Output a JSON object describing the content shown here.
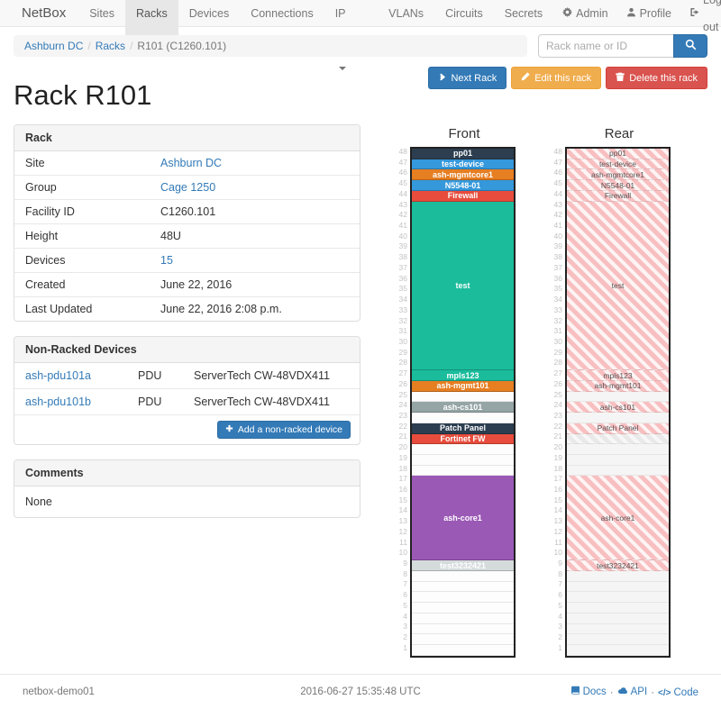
{
  "navbar": {
    "brand": "NetBox",
    "items": [
      {
        "label": "Sites"
      },
      {
        "label": "Racks"
      },
      {
        "label": "Devices"
      },
      {
        "label": "Connections"
      },
      {
        "label": "IP Space"
      },
      {
        "label": "VLANs"
      },
      {
        "label": "Circuits"
      },
      {
        "label": "Secrets"
      }
    ],
    "active_item": "Racks",
    "right_items": [
      {
        "label": "Admin",
        "icon": "gear-icon"
      },
      {
        "label": "Profile",
        "icon": "user-icon"
      },
      {
        "label": "Log out",
        "icon": "logout-icon"
      }
    ]
  },
  "breadcrumb": {
    "items": [
      {
        "label": "Ashburn DC",
        "link": true
      },
      {
        "label": "Racks",
        "link": true
      },
      {
        "label": "R101 (C1260.101)",
        "link": false
      }
    ]
  },
  "search": {
    "placeholder": "Rack name or ID"
  },
  "page": {
    "title": "Rack R101"
  },
  "actions": {
    "next_label": "Next Rack",
    "edit_label": "Edit this rack",
    "delete_label": "Delete this rack"
  },
  "rack_panel": {
    "title": "Rack",
    "rows": [
      {
        "label": "Site",
        "value": "Ashburn DC",
        "link": true
      },
      {
        "label": "Group",
        "value": "Cage 1250",
        "link": true
      },
      {
        "label": "Facility ID",
        "value": "C1260.101",
        "link": false
      },
      {
        "label": "Height",
        "value": "48U",
        "link": false
      },
      {
        "label": "Devices",
        "value": "15",
        "link": true
      },
      {
        "label": "Created",
        "value": "June 22, 2016",
        "link": false
      },
      {
        "label": "Last Updated",
        "value": "June 22, 2016 2:08 p.m.",
        "link": false
      }
    ]
  },
  "nonracked_panel": {
    "title": "Non-Racked Devices",
    "rows": [
      {
        "name": "ash-pdu101a",
        "role": "PDU",
        "type": "ServerTech CW-48VDX411"
      },
      {
        "name": "ash-pdu101b",
        "role": "PDU",
        "type": "ServerTech CW-48VDX411"
      }
    ],
    "add_button_label": "Add a non-racked device"
  },
  "comments_panel": {
    "title": "Comments",
    "body": "None"
  },
  "elevations": {
    "units_total": 48,
    "front": {
      "title": "Front",
      "slots": [
        {
          "u": 48,
          "h": 1,
          "label": "pp01",
          "color": "#2c3e50"
        },
        {
          "u": 47,
          "h": 1,
          "label": "test-device",
          "color": "#3498db"
        },
        {
          "u": 46,
          "h": 1,
          "label": "ash-mgmtcore1",
          "color": "#e67e22"
        },
        {
          "u": 45,
          "h": 1,
          "label": "N5548-01",
          "color": "#3498db"
        },
        {
          "u": 44,
          "h": 1,
          "label": "Firewall",
          "color": "#e74c3c"
        },
        {
          "u": 43,
          "h": 16,
          "label": "test",
          "color": "#1abc9c"
        },
        {
          "u": 27,
          "h": 1,
          "label": "mpls123",
          "color": "#1abc9c"
        },
        {
          "u": 26,
          "h": 1,
          "label": "ash-mgmt101",
          "color": "#e67e22"
        },
        {
          "u": 24,
          "h": 1,
          "label": "ash-cs101",
          "color": "#95a5a6"
        },
        {
          "u": 22,
          "h": 1,
          "label": "Patch Panel",
          "color": "#2c3e50"
        },
        {
          "u": 21,
          "h": 1,
          "label": "Fortinet FW",
          "color": "#e74c3c"
        },
        {
          "u": 17,
          "h": 8,
          "label": "ash-core1",
          "color": "#9b59b6"
        },
        {
          "u": 9,
          "h": 1,
          "label": "test3232421",
          "color": "#d5dbdb"
        }
      ]
    },
    "rear": {
      "title": "Rear",
      "slots": [
        {
          "u": 48,
          "h": 1,
          "label": "pp01",
          "style": "hatch"
        },
        {
          "u": 47,
          "h": 1,
          "label": "test-device",
          "style": "hatch"
        },
        {
          "u": 46,
          "h": 1,
          "label": "ash-mgmtcore1",
          "style": "hatch"
        },
        {
          "u": 45,
          "h": 1,
          "label": "N5548-01",
          "style": "hatch"
        },
        {
          "u": 44,
          "h": 1,
          "label": "Firewall",
          "style": "hatch"
        },
        {
          "u": 43,
          "h": 16,
          "label": "test",
          "style": "hatch"
        },
        {
          "u": 27,
          "h": 1,
          "label": "mpls123",
          "style": "hatch"
        },
        {
          "u": 26,
          "h": 1,
          "label": "ash-mgmt101",
          "style": "hatch"
        },
        {
          "u": 24,
          "h": 1,
          "label": "ash-cs101",
          "style": "hatch"
        },
        {
          "u": 22,
          "h": 1,
          "label": "Patch Panel",
          "style": "hatch"
        },
        {
          "u": 21,
          "h": 1,
          "label": "",
          "style": "ghost"
        },
        {
          "u": 17,
          "h": 8,
          "label": "ash-core1",
          "style": "hatch"
        },
        {
          "u": 9,
          "h": 1,
          "label": "test3232421",
          "style": "hatch"
        }
      ]
    }
  },
  "footer": {
    "hostname": "netbox-demo01",
    "timestamp": "2016-06-27 15:35:48 UTC",
    "links": [
      {
        "label": "Docs",
        "icon": "book-icon"
      },
      {
        "label": "API",
        "icon": "cloud-icon"
      },
      {
        "label": "Code",
        "icon": "code-icon"
      }
    ]
  },
  "colors": {
    "accent": "#337ab7",
    "warning": "#f0ad4e",
    "danger": "#d9534f",
    "hatch_pink": "#f8bfc1"
  }
}
